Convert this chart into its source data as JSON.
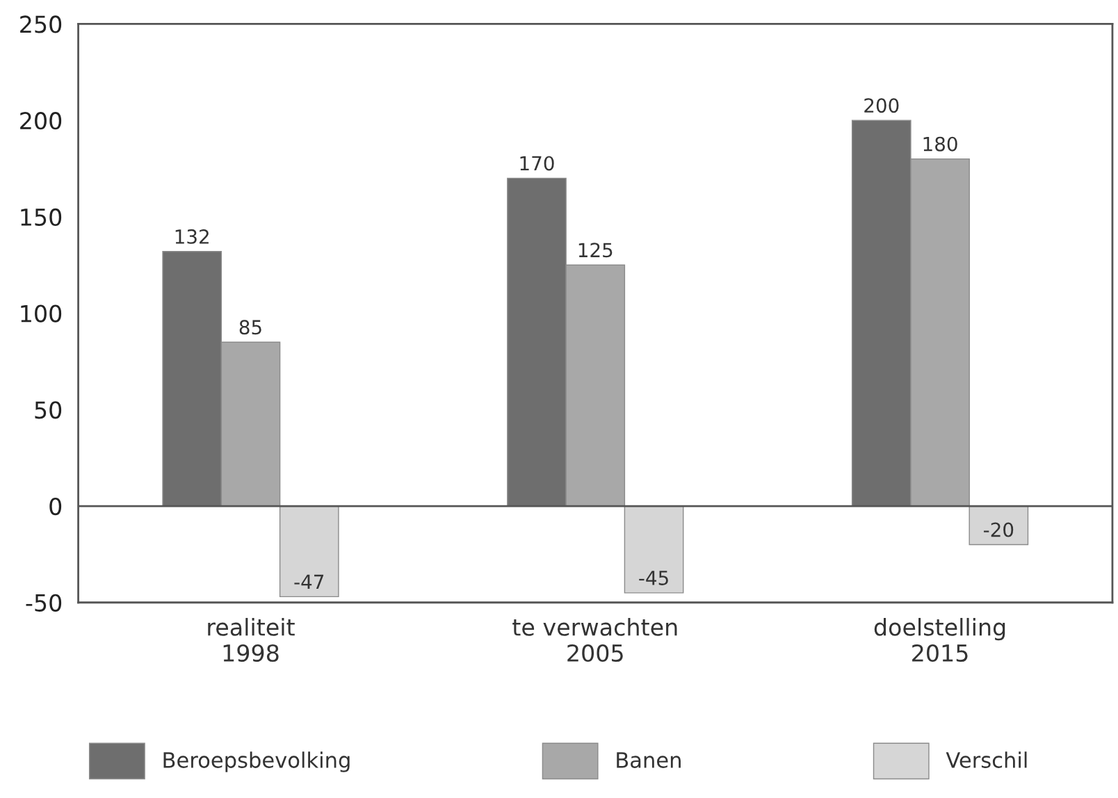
{
  "chart_data": {
    "type": "bar",
    "categories": [
      "realiteit\n1998",
      "te verwachten\n2005",
      "doelstelling\n2015"
    ],
    "series": [
      {
        "name": "Beroepsbevolking",
        "color": "#6e6e6e",
        "values": [
          132,
          170,
          200
        ]
      },
      {
        "name": "Banen",
        "color": "#a8a8a8",
        "values": [
          85,
          125,
          180
        ]
      },
      {
        "name": "Verschil",
        "color": "#d6d6d6",
        "values": [
          -47,
          -45,
          -20
        ]
      }
    ],
    "ylim": [
      -50,
      250
    ],
    "yticks": [
      -50,
      0,
      50,
      100,
      150,
      200,
      250
    ],
    "data_labels": true,
    "legend": "bottom",
    "grid": false,
    "ref_lines": [
      {
        "axis": "y",
        "value": 0,
        "color": "#555555"
      }
    ]
  }
}
